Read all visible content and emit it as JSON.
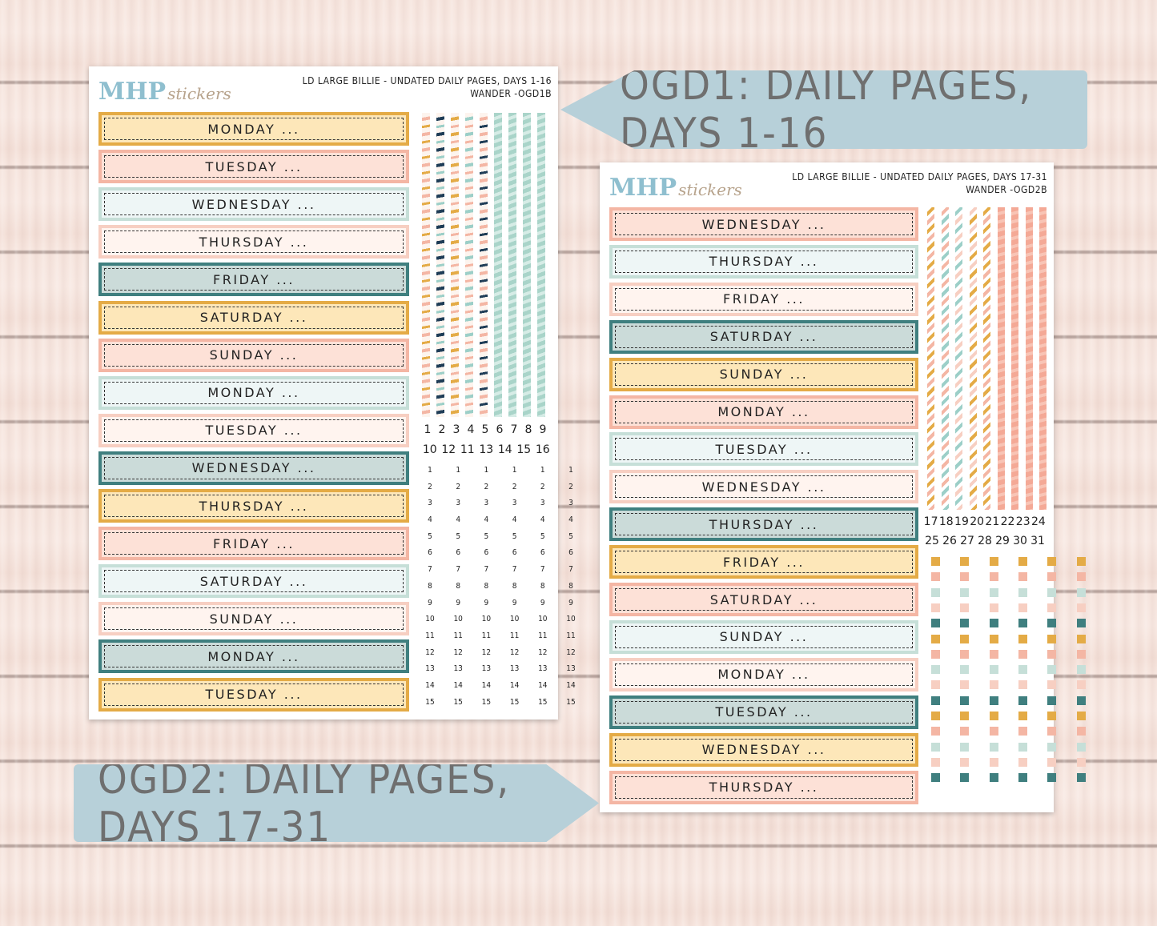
{
  "logo": {
    "brand": "MHP",
    "suffix": "stickers"
  },
  "sheet1": {
    "title_line1": "LD LARGE BILLIE  - UNDATED DAILY PAGES, DAYS 1-16",
    "title_line2": "WANDER -OGD1B",
    "banners": [
      {
        "label": "MONDAY ...",
        "color": "yellow"
      },
      {
        "label": "TUESDAY ...",
        "color": "pink"
      },
      {
        "label": "WEDNESDAY ...",
        "color": "mint"
      },
      {
        "label": "THURSDAY ...",
        "color": "cream"
      },
      {
        "label": "FRIDAY ...",
        "color": "teal"
      },
      {
        "label": "SATURDAY ...",
        "color": "yellow"
      },
      {
        "label": "SUNDAY ...",
        "color": "pink"
      },
      {
        "label": "MONDAY ...",
        "color": "mint"
      },
      {
        "label": "TUESDAY ...",
        "color": "cream"
      },
      {
        "label": "WEDNESDAY ...",
        "color": "teal"
      },
      {
        "label": "THURSDAY ...",
        "color": "yellow"
      },
      {
        "label": "FRIDAY ...",
        "color": "pink"
      },
      {
        "label": "SATURDAY ...",
        "color": "mint"
      },
      {
        "label": "SUNDAY ...",
        "color": "cream"
      },
      {
        "label": "MONDAY ...",
        "color": "teal"
      },
      {
        "label": "TUESDAY ...",
        "color": "yellow"
      }
    ],
    "day_numbers_row1": [
      "1",
      "2",
      "3",
      "4",
      "5",
      "6",
      "7",
      "8",
      "9"
    ],
    "day_numbers_row2": [
      "10",
      "12",
      "11",
      "13",
      "14",
      "15",
      "16"
    ],
    "count_numbers": [
      "1",
      "2",
      "3",
      "4",
      "5",
      "6",
      "7",
      "8",
      "9",
      "10",
      "11",
      "12",
      "13",
      "14",
      "15"
    ]
  },
  "sheet2": {
    "title_line1": "LD LARGE BILLIE - UNDATED DAILY PAGES, DAYS 17-31",
    "title_line2": "WANDER -OGD2B",
    "banners": [
      {
        "label": "WEDNESDAY ...",
        "color": "pink"
      },
      {
        "label": "THURSDAY ...",
        "color": "mint"
      },
      {
        "label": "FRIDAY ...",
        "color": "cream"
      },
      {
        "label": "SATURDAY ...",
        "color": "teal"
      },
      {
        "label": "SUNDAY ...",
        "color": "yellow"
      },
      {
        "label": "MONDAY ...",
        "color": "pink"
      },
      {
        "label": "TUESDAY ...",
        "color": "mint"
      },
      {
        "label": "WEDNESDAY ...",
        "color": "cream"
      },
      {
        "label": "THURSDAY ...",
        "color": "teal"
      },
      {
        "label": "FRIDAY ...",
        "color": "yellow"
      },
      {
        "label": "SATURDAY ...",
        "color": "pink"
      },
      {
        "label": "SUNDAY ...",
        "color": "mint"
      },
      {
        "label": "MONDAY ...",
        "color": "cream"
      },
      {
        "label": "TUESDAY ...",
        "color": "teal"
      },
      {
        "label": "WEDNESDAY ...",
        "color": "yellow"
      },
      {
        "label": "THURSDAY ...",
        "color": "pink"
      }
    ],
    "day_numbers_row1": [
      "17",
      "18",
      "19",
      "20",
      "21",
      "22",
      "23",
      "24"
    ],
    "day_numbers_row2": [
      "25",
      "26",
      "27",
      "28",
      "29",
      "30",
      "31"
    ]
  },
  "tags": {
    "tag1": "OGD1: DAILY PAGES, DAYS 1-16",
    "tag2": "OGD2: DAILY PAGES, DAYS 17-31"
  },
  "colors": {
    "yellow": "#e4ab46",
    "pink": "#f4b6a4",
    "mint": "#c6dfd8",
    "cream": "#f7cfc2",
    "teal": "#3f7f7f",
    "tag": "#b7d0d9",
    "logo_blue": "#8fbfcf"
  }
}
